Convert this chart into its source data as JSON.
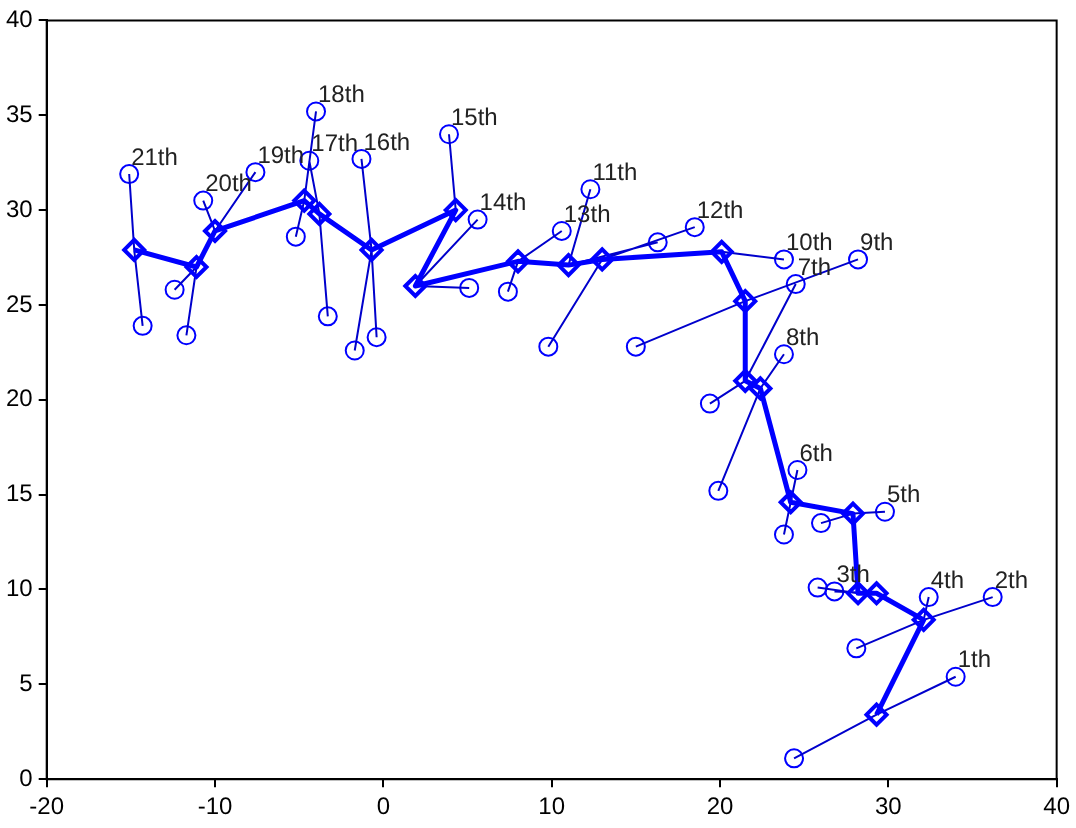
{
  "chart_data": {
    "type": "line",
    "xlim": [
      -20,
      40
    ],
    "xticks": [
      -20,
      -10,
      0,
      10,
      20,
      30,
      40
    ],
    "ylim": [
      0,
      40
    ],
    "yticks": [
      0,
      5,
      10,
      15,
      20,
      25,
      30,
      35,
      40
    ],
    "series": [
      {
        "type": "line",
        "color": "#0000ff",
        "marker": "diamond",
        "x": [
          29.3,
          32.1,
          29.3,
          28.2,
          27.9,
          24.2,
          22.4,
          21.5,
          21.5,
          20.1,
          13.0,
          11.0,
          8.0,
          1.9,
          4.3,
          -0.7,
          -3.8,
          -4.7,
          -10.0,
          -11.1,
          -14.8
        ],
        "values": [
          3.4,
          8.4,
          9.8,
          9.8,
          14.0,
          14.6,
          20.6,
          21.0,
          25.2,
          27.8,
          27.4,
          27.1,
          27.3,
          26.0,
          30.0,
          27.9,
          29.8,
          30.5,
          28.9,
          27.0,
          27.9
        ]
      },
      {
        "type": "line",
        "color": "#0000cc",
        "marker": "none",
        "x": [
          34.0,
          29.3,
          24.4,
          null,
          36.2,
          32.1,
          28.1,
          null,
          32.4,
          32.1,
          null,
          26.8,
          29.3,
          null,
          25.8,
          28.2,
          null,
          29.8,
          27.9,
          26.0,
          null,
          24.6,
          24.2,
          23.8,
          null,
          23.8,
          22.4,
          19.9,
          null,
          19.4,
          21.5,
          24.5,
          null,
          15.0,
          21.5,
          28.2,
          null,
          23.8,
          20.1,
          null,
          18.5,
          13.0,
          9.8,
          null,
          16.3,
          11.0,
          12.3,
          null,
          10.6,
          8.0,
          7.4,
          null,
          5.6,
          1.9,
          5.1,
          null,
          3.9,
          4.3,
          null,
          -1.3,
          -0.7,
          -0.4,
          null,
          -1.7,
          -0.7,
          null,
          -3.3,
          -3.8,
          -4.4,
          null,
          -4.0,
          -4.7,
          -5.2,
          null,
          -7.6,
          -10.0,
          -10.7,
          null,
          -11.7,
          -11.1,
          -12.4,
          null,
          -15.1,
          -14.8,
          -14.3
        ],
        "values": [
          5.4,
          3.4,
          1.1,
          null,
          9.6,
          8.4,
          6.9,
          null,
          9.6,
          8.4,
          null,
          9.9,
          9.8,
          null,
          10.1,
          9.8,
          null,
          14.1,
          14.0,
          13.5,
          null,
          16.3,
          14.6,
          12.9,
          null,
          22.4,
          20.6,
          15.2,
          null,
          19.8,
          21.0,
          26.1,
          null,
          22.8,
          25.2,
          27.4,
          null,
          27.4,
          27.8,
          null,
          29.1,
          27.4,
          22.8,
          null,
          28.3,
          27.1,
          31.1,
          null,
          28.9,
          27.3,
          25.7,
          null,
          29.5,
          26.0,
          25.9,
          null,
          34.0,
          30.0,
          null,
          32.7,
          27.9,
          23.3,
          null,
          22.6,
          27.9,
          null,
          24.4,
          29.8,
          32.6,
          null,
          35.2,
          30.5,
          28.6,
          null,
          32.0,
          28.9,
          30.5,
          null,
          23.4,
          27.0,
          25.8,
          null,
          31.9,
          27.9,
          23.9
        ]
      },
      {
        "type": "scatter",
        "color": "#0000ff",
        "marker": "circle",
        "x": [
          34.0,
          24.4,
          36.2,
          28.1,
          32.4,
          26.8,
          25.8,
          29.8,
          26.0,
          24.6,
          23.8,
          23.8,
          19.9,
          19.4,
          24.5,
          15.0,
          28.2,
          23.8,
          18.5,
          9.8,
          16.3,
          12.3,
          10.6,
          7.4,
          5.6,
          5.1,
          3.9,
          -1.3,
          -0.4,
          -1.7,
          -3.3,
          -4.4,
          -4.0,
          -5.2,
          -7.6,
          -10.7,
          -11.7,
          -12.4,
          -15.1,
          -14.3
        ],
        "values": [
          5.4,
          1.1,
          9.6,
          6.9,
          9.6,
          9.9,
          10.1,
          14.1,
          13.5,
          16.3,
          12.9,
          22.4,
          15.2,
          19.8,
          26.1,
          22.8,
          27.4,
          27.4,
          29.1,
          22.8,
          28.3,
          31.1,
          28.9,
          25.7,
          29.5,
          25.9,
          34.0,
          32.7,
          23.3,
          22.6,
          24.4,
          32.6,
          35.2,
          28.6,
          32.0,
          30.5,
          23.4,
          25.8,
          31.9,
          23.9
        ]
      }
    ],
    "annotations": [
      {
        "text": "1th",
        "x": 34.0,
        "y": 5.4
      },
      {
        "text": "2th",
        "x": 36.2,
        "y": 9.6
      },
      {
        "text": "3th",
        "x": 26.8,
        "y": 9.9
      },
      {
        "text": "4th",
        "x": 32.4,
        "y": 9.6
      },
      {
        "text": "5th",
        "x": 29.8,
        "y": 14.1
      },
      {
        "text": "6th",
        "x": 24.6,
        "y": 16.3
      },
      {
        "text": "7th",
        "x": 24.5,
        "y": 26.1
      },
      {
        "text": "8th",
        "x": 23.8,
        "y": 22.4
      },
      {
        "text": "9th",
        "x": 28.2,
        "y": 27.4
      },
      {
        "text": "10th",
        "x": 23.8,
        "y": 27.4
      },
      {
        "text": "11th",
        "x": 12.3,
        "y": 31.1
      },
      {
        "text": "12th",
        "x": 18.5,
        "y": 29.1
      },
      {
        "text": "13th",
        "x": 10.6,
        "y": 28.9
      },
      {
        "text": "14th",
        "x": 5.6,
        "y": 29.5
      },
      {
        "text": "15th",
        "x": 3.9,
        "y": 34.0
      },
      {
        "text": "16th",
        "x": -1.3,
        "y": 32.7
      },
      {
        "text": "17th",
        "x": -4.4,
        "y": 32.6
      },
      {
        "text": "18th",
        "x": -4.0,
        "y": 35.2
      },
      {
        "text": "19th",
        "x": -7.6,
        "y": 32.0
      },
      {
        "text": "20th",
        "x": -10.7,
        "y": 30.5
      },
      {
        "text": "21th",
        "x": -15.1,
        "y": 31.9
      }
    ]
  }
}
